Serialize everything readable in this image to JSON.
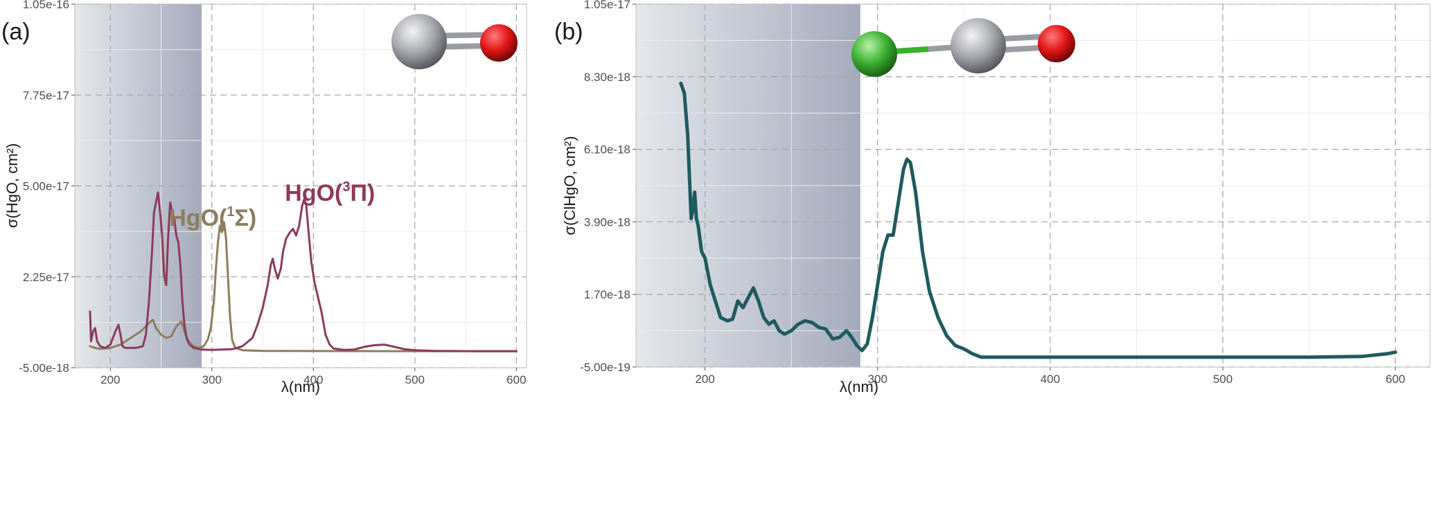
{
  "panels": [
    {
      "panel_label": "(a)",
      "colors": {
        "shade": "#8a93a8",
        "hgo_1sigma": "#8c7d5c",
        "hgo_3pi": "#8c3a5b",
        "hg": "#a6a8ae",
        "o": "#e01515"
      },
      "molecule_icon": [
        "mercury-atom-icon",
        "oxygen-atom-icon"
      ],
      "chart_data": {
        "type": "line",
        "xlabel": "λ(nm)",
        "ylabel": "σ(HgO, cm²)",
        "xlim": [
          165,
          610
        ],
        "ylim": [
          -5e-18,
          1.05e-16
        ],
        "x_ticks": [
          200,
          300,
          400,
          500,
          600
        ],
        "x_tick_labels": [
          "200",
          "300",
          "400",
          "500",
          "600"
        ],
        "y_ticks": [
          -5e-18,
          2.25e-17,
          5e-17,
          7.75e-17,
          1.05e-16
        ],
        "y_tick_labels": [
          "-5.00e-18",
          "2.25e-17",
          "5.00e-17",
          "7.75e-17",
          "1.05e-16"
        ],
        "shaded_region": [
          165,
          290
        ],
        "grid": true,
        "annotations": [
          {
            "text": "HgO(",
            "sup": "1",
            "after": "Σ)",
            "x": 258,
            "y": 3.8e-17,
            "color": "#8c7d5c"
          },
          {
            "text": "HgO(",
            "sup": "3",
            "after": "Π)",
            "x": 372,
            "y": 4.55e-17,
            "color": "#8c3a5b"
          }
        ],
        "series": [
          {
            "key": "hgo_1sigma",
            "color": "#8c7d5c",
            "width": 3,
            "points": [
              [
                180,
                1.5e-18
              ],
              [
                185,
                1e-18
              ],
              [
                190,
                7e-19
              ],
              [
                200,
                1e-18
              ],
              [
                210,
                2e-18
              ],
              [
                220,
                4e-18
              ],
              [
                230,
                6e-18
              ],
              [
                238,
                8.5e-18
              ],
              [
                242,
                9.5e-18
              ],
              [
                245,
                7e-18
              ],
              [
                250,
                5e-18
              ],
              [
                255,
                4e-18
              ],
              [
                260,
                4.5e-18
              ],
              [
                265,
                7.5e-18
              ],
              [
                270,
                9e-18
              ],
              [
                273,
                6e-18
              ],
              [
                277,
                3e-18
              ],
              [
                282,
                1.5e-18
              ],
              [
                288,
                1e-18
              ],
              [
                292,
                1.5e-18
              ],
              [
                296,
                3.5e-18
              ],
              [
                299,
                7e-18
              ],
              [
                302,
                1.5e-17
              ],
              [
                304,
                2.5e-17
              ],
              [
                306,
                3.3e-17
              ],
              [
                308,
                3.8e-17
              ],
              [
                310,
                3.6e-17
              ],
              [
                312,
                3.9e-17
              ],
              [
                314,
                3.4e-17
              ],
              [
                316,
                2.2e-17
              ],
              [
                318,
                1e-17
              ],
              [
                320,
                3.5e-18
              ],
              [
                323,
                1e-18
              ],
              [
                330,
                3e-19
              ],
              [
                350,
                1e-19
              ],
              [
                400,
                5e-20
              ],
              [
                450,
                2e-20
              ],
              [
                500,
                1e-20
              ],
              [
                600,
                0
              ]
            ]
          },
          {
            "key": "hgo_3pi",
            "color": "#8c3a5b",
            "width": 3,
            "points": [
              [
                180,
                1.2e-17
              ],
              [
                181,
                3e-18
              ],
              [
                183,
                6e-18
              ],
              [
                185,
                7e-18
              ],
              [
                187,
                3e-18
              ],
              [
                190,
                1.5e-18
              ],
              [
                195,
                1e-18
              ],
              [
                200,
                2e-18
              ],
              [
                205,
                6e-18
              ],
              [
                208,
                8e-18
              ],
              [
                210,
                5e-18
              ],
              [
                212,
                1.5e-18
              ],
              [
                215,
                1e-18
              ],
              [
                225,
                1e-18
              ],
              [
                232,
                1.5e-18
              ],
              [
                235,
                5e-18
              ],
              [
                238,
                1.5e-17
              ],
              [
                241,
                3e-17
              ],
              [
                243,
                4.2e-17
              ],
              [
                245,
                4.5e-17
              ],
              [
                247,
                4.8e-17
              ],
              [
                249,
                4.2e-17
              ],
              [
                251,
                3.5e-17
              ],
              [
                253,
                2.3e-17
              ],
              [
                255,
                2e-17
              ],
              [
                257,
                3.5e-17
              ],
              [
                259,
                4.5e-17
              ],
              [
                261,
                4.2e-17
              ],
              [
                263,
                4e-17
              ],
              [
                265,
                3.5e-17
              ],
              [
                267,
                3.3e-17
              ],
              [
                269,
                2.6e-17
              ],
              [
                271,
                1.5e-17
              ],
              [
                273,
                8e-18
              ],
              [
                275,
                4e-18
              ],
              [
                278,
                2e-18
              ],
              [
                282,
                1e-18
              ],
              [
                290,
                5e-19
              ],
              [
                300,
                4e-19
              ],
              [
                320,
                6e-19
              ],
              [
                330,
                1.5e-18
              ],
              [
                340,
                4e-18
              ],
              [
                345,
                8e-18
              ],
              [
                350,
                1.3e-17
              ],
              [
                355,
                2e-17
              ],
              [
                358,
                2.6e-17
              ],
              [
                360,
                2.8e-17
              ],
              [
                362,
                2.5e-17
              ],
              [
                365,
                2.2e-17
              ],
              [
                368,
                2.5e-17
              ],
              [
                370,
                3e-17
              ],
              [
                373,
                3.4e-17
              ],
              [
                377,
                3.6e-17
              ],
              [
                380,
                3.7e-17
              ],
              [
                383,
                3.5e-17
              ],
              [
                386,
                3.8e-17
              ],
              [
                389,
                4.4e-17
              ],
              [
                391,
                4.6e-17
              ],
              [
                393,
                4.4e-17
              ],
              [
                395,
                3.7e-17
              ],
              [
                398,
                2.7e-17
              ],
              [
                401,
                2.1e-17
              ],
              [
                404,
                1.7e-17
              ],
              [
                408,
                1.2e-17
              ],
              [
                412,
                5e-18
              ],
              [
                416,
                2e-18
              ],
              [
                420,
                8e-19
              ],
              [
                430,
                4e-19
              ],
              [
                440,
                5e-19
              ],
              [
                450,
                1.3e-18
              ],
              [
                460,
                1.8e-18
              ],
              [
                470,
                2e-18
              ],
              [
                480,
                1.3e-18
              ],
              [
                490,
                6e-19
              ],
              [
                500,
                3e-19
              ],
              [
                520,
                1e-19
              ],
              [
                560,
                0
              ],
              [
                600,
                0
              ]
            ]
          }
        ]
      }
    },
    {
      "panel_label": "(b)",
      "colors": {
        "shade": "#8a93a8",
        "clhgo": "#1f5a5e",
        "cl": "#3bb030",
        "hg": "#a6a8ae",
        "o": "#e01515"
      },
      "molecule_icon": [
        "chlorine-atom-icon",
        "mercury-atom-icon",
        "oxygen-atom-icon"
      ],
      "chart_data": {
        "type": "line",
        "xlabel": "λ(nm)",
        "ylabel": "σ(ClHgO, cm²)",
        "xlim": [
          160,
          620
        ],
        "ylim": [
          -5e-19,
          1.05e-17
        ],
        "x_ticks": [
          200,
          300,
          400,
          500,
          600
        ],
        "x_tick_labels": [
          "200",
          "300",
          "400",
          "500",
          "600"
        ],
        "y_ticks": [
          -5e-19,
          1.7e-18,
          3.9e-18,
          6.1e-18,
          8.3e-18,
          1.05e-17
        ],
        "y_tick_labels": [
          "-5.00e-19",
          "1.70e-18",
          "3.90e-18",
          "6.10e-18",
          "8.30e-18",
          "1.05e-17"
        ],
        "shaded_region": [
          160,
          290
        ],
        "grid": true,
        "series": [
          {
            "key": "clhgo",
            "color": "#1f5a5e",
            "width": 5,
            "points": [
              [
                186,
                8.1e-18
              ],
              [
                188,
                7.8e-18
              ],
              [
                190,
                6.5e-18
              ],
              [
                192,
                4e-18
              ],
              [
                193,
                4.3e-18
              ],
              [
                194,
                4.8e-18
              ],
              [
                195,
                4e-18
              ],
              [
                196,
                3.8e-18
              ],
              [
                198,
                3e-18
              ],
              [
                200,
                2.8e-18
              ],
              [
                203,
                2e-18
              ],
              [
                206,
                1.5e-18
              ],
              [
                209,
                1e-18
              ],
              [
                213,
                9e-19
              ],
              [
                216,
                9.5e-19
              ],
              [
                219,
                1.5e-18
              ],
              [
                222,
                1.3e-18
              ],
              [
                225,
                1.6e-18
              ],
              [
                228,
                1.9e-18
              ],
              [
                231,
                1.5e-18
              ],
              [
                234,
                1e-18
              ],
              [
                237,
                8e-19
              ],
              [
                240,
                9e-19
              ],
              [
                243,
                6e-19
              ],
              [
                246,
                5e-19
              ],
              [
                250,
                6e-19
              ],
              [
                254,
                8e-19
              ],
              [
                258,
                9e-19
              ],
              [
                262,
                8.5e-19
              ],
              [
                266,
                7e-19
              ],
              [
                270,
                6.5e-19
              ],
              [
                274,
                3.5e-19
              ],
              [
                278,
                4e-19
              ],
              [
                282,
                6e-19
              ],
              [
                285,
                4e-19
              ],
              [
                288,
                1.5e-19
              ],
              [
                291,
                0
              ],
              [
                294,
                2e-19
              ],
              [
                297,
                1e-18
              ],
              [
                300,
                2e-18
              ],
              [
                303,
                3e-18
              ],
              [
                306,
                3.5e-18
              ],
              [
                309,
                3.5e-18
              ],
              [
                312,
                4.5e-18
              ],
              [
                315,
                5.5e-18
              ],
              [
                317,
                5.8e-18
              ],
              [
                319,
                5.7e-18
              ],
              [
                322,
                4.8e-18
              ],
              [
                326,
                3e-18
              ],
              [
                330,
                1.8e-18
              ],
              [
                335,
                1e-18
              ],
              [
                340,
                4.5e-19
              ],
              [
                345,
                1.5e-19
              ],
              [
                350,
                5e-20
              ],
              [
                355,
                -1e-19
              ],
              [
                360,
                -2e-19
              ],
              [
                400,
                -2e-19
              ],
              [
                450,
                -2e-19
              ],
              [
                500,
                -2e-19
              ],
              [
                550,
                -2e-19
              ],
              [
                580,
                -1.8e-19
              ],
              [
                595,
                -1e-19
              ],
              [
                600,
                -5e-20
              ]
            ]
          }
        ]
      }
    }
  ]
}
